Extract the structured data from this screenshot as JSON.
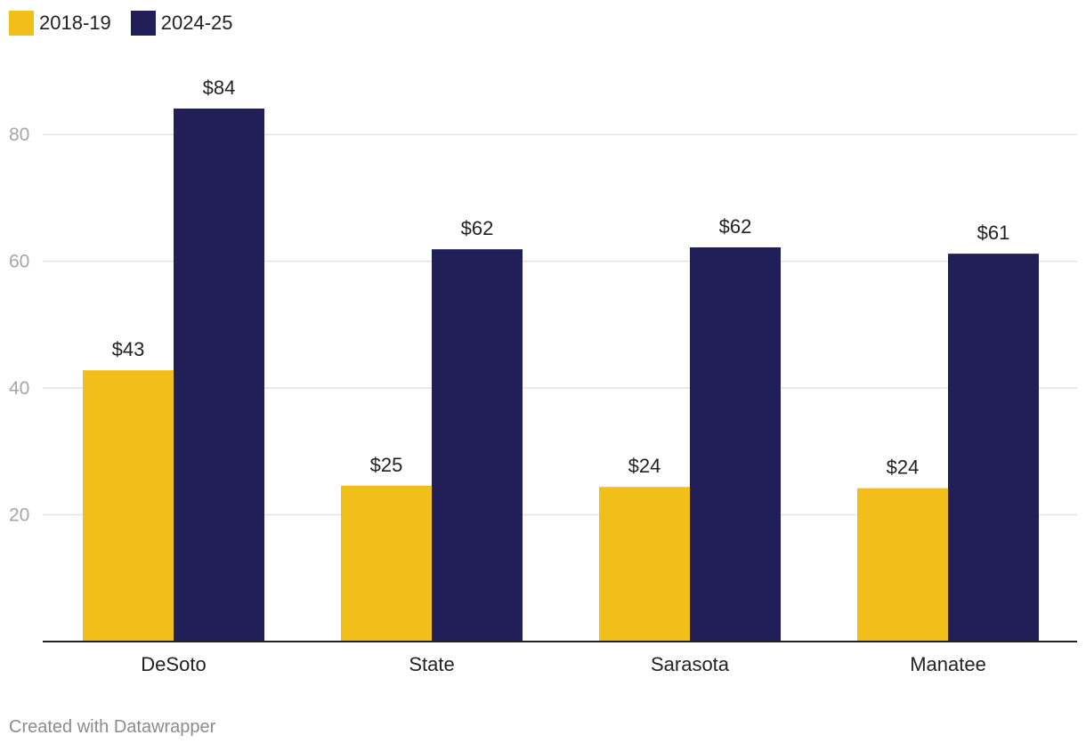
{
  "chart_data": {
    "type": "bar",
    "categories": [
      "DeSoto",
      "State",
      "Sarasota",
      "Manatee"
    ],
    "series": [
      {
        "name": "2018-19",
        "color": "#f2be1a",
        "values": [
          42.8,
          24.6,
          24.4,
          24.2
        ],
        "labels": [
          "$43",
          "$25",
          "$24",
          "$24"
        ]
      },
      {
        "name": "2024-25",
        "color": "#221f58",
        "values": [
          84.1,
          61.9,
          62.2,
          61.2
        ],
        "labels": [
          "$84",
          "$62",
          "$62",
          "$61"
        ]
      }
    ],
    "ylim": [
      0,
      84.1
    ],
    "yticks": [
      20,
      40,
      60,
      80
    ],
    "grid": true,
    "legend_position": "top-left",
    "title": "",
    "xlabel": "",
    "ylabel": ""
  },
  "footer": "Created with Datawrapper"
}
